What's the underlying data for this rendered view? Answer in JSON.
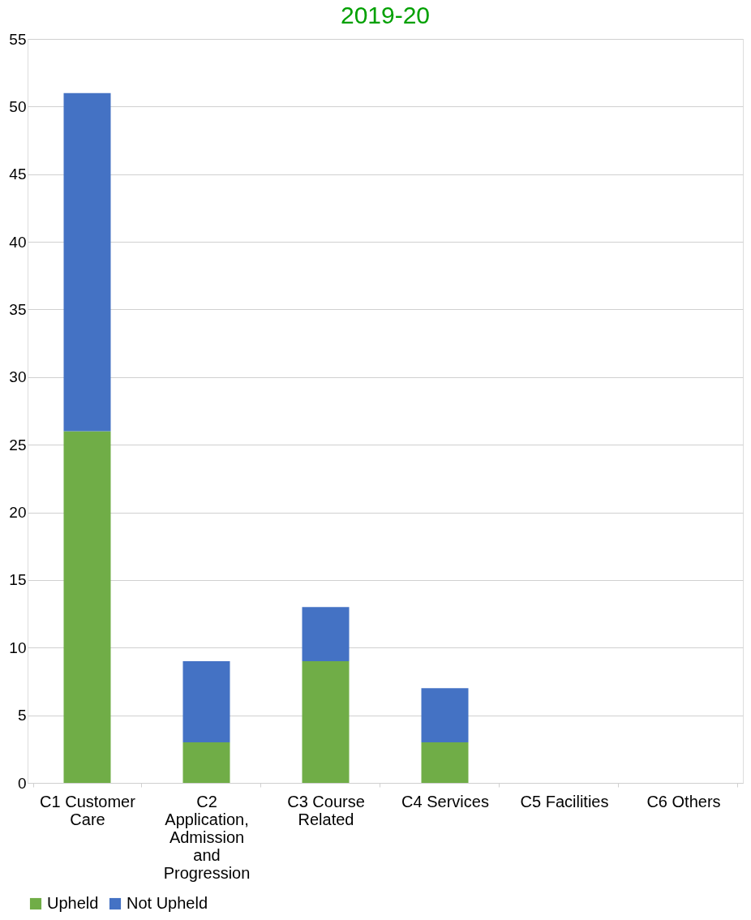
{
  "chart_data": {
    "type": "bar",
    "title": "2019-20",
    "stacked": true,
    "categories": [
      "C1 Customer\nCare",
      "C2\nApplication,\nAdmission\nand\nProgression",
      "C3 Course\nRelated",
      "C4 Services",
      "C5 Facilities",
      "C6 Others"
    ],
    "series": [
      {
        "name": "Upheld",
        "color": "#70ad47",
        "values": [
          26,
          3,
          9,
          3,
          0,
          0
        ]
      },
      {
        "name": "Not Upheld",
        "color": "#4472c4",
        "values": [
          25,
          6,
          4,
          4,
          0,
          0
        ]
      }
    ],
    "ylim": [
      0,
      55
    ],
    "yticks": [
      0,
      5,
      10,
      15,
      20,
      25,
      30,
      35,
      40,
      45,
      50,
      55
    ],
    "grid": "y",
    "legend": "bottom"
  }
}
